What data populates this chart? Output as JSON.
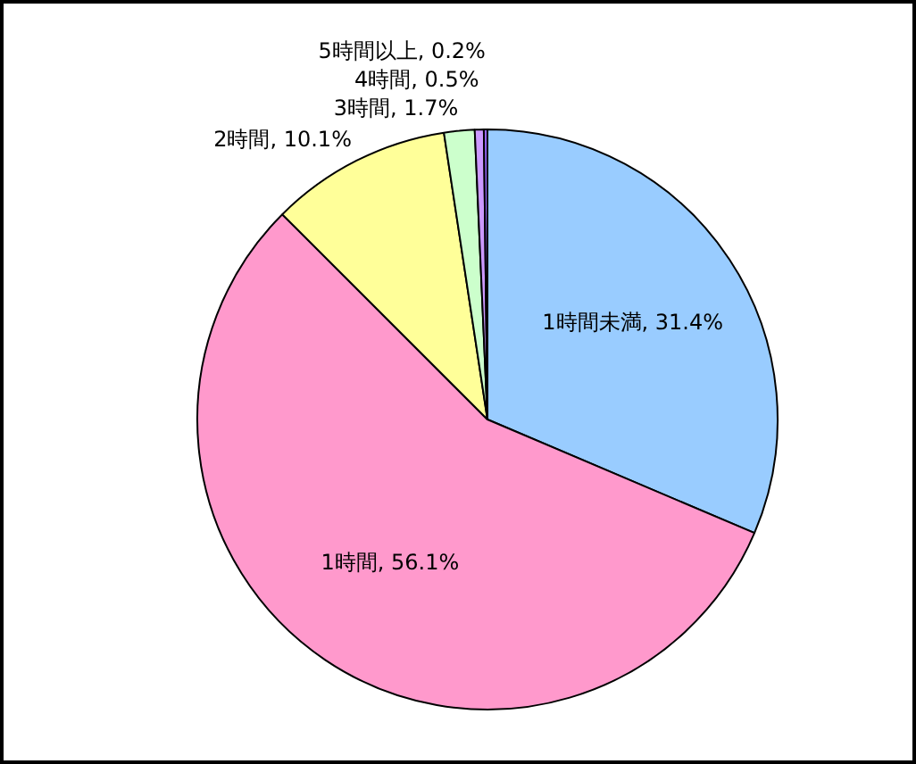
{
  "chart_data": {
    "type": "pie",
    "categories": [
      "1時間未満",
      "1時間",
      "2時間",
      "3時間",
      "4時間",
      "5時間以上"
    ],
    "values": [
      31.4,
      56.1,
      10.1,
      1.7,
      0.5,
      0.2
    ],
    "value_labels": [
      "31.4%",
      "56.1%",
      "10.1%",
      "1.7%",
      "0.5%",
      "0.2%"
    ],
    "colors": [
      "#99ccff",
      "#ff99cc",
      "#ffff99",
      "#ccffcc",
      "#cc99ff",
      "#9966ff"
    ],
    "legend": false
  }
}
